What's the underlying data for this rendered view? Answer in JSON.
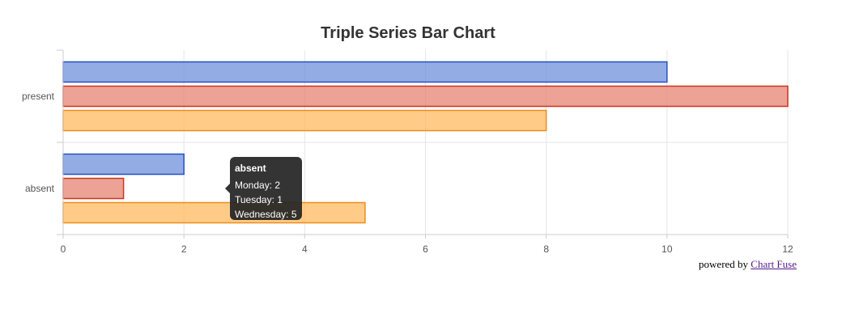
{
  "chart_data": {
    "type": "bar",
    "orientation": "horizontal",
    "title": "Triple Series Bar Chart",
    "categories": [
      "present",
      "absent"
    ],
    "series": [
      {
        "name": "Monday",
        "values": [
          10,
          2
        ],
        "fill": "#6f92db",
        "stroke": "#2450c8",
        "color": "#2450c8"
      },
      {
        "name": "Tuesday",
        "values": [
          12,
          1
        ],
        "fill": "#e58371",
        "stroke": "#cc3320",
        "color": "#cc3320"
      },
      {
        "name": "Wednesday",
        "values": [
          8,
          5
        ],
        "fill": "#ffb95e",
        "stroke": "#f08c1a",
        "color": "#f08c1a"
      }
    ],
    "xlim": [
      0,
      12
    ],
    "x_ticks": [
      0,
      2,
      4,
      6,
      8,
      10,
      12
    ],
    "x_tick_labels": [
      "0",
      "2",
      "4",
      "6",
      "8",
      "10",
      "12"
    ],
    "grid": true,
    "legend": "none"
  },
  "tooltip": {
    "title": "absent",
    "lines": [
      "Monday: 2",
      "Tuesday: 1",
      "Wednesday: 5"
    ]
  },
  "footer": {
    "prefix": "powered by",
    "link_text": "Chart Fuse"
  }
}
